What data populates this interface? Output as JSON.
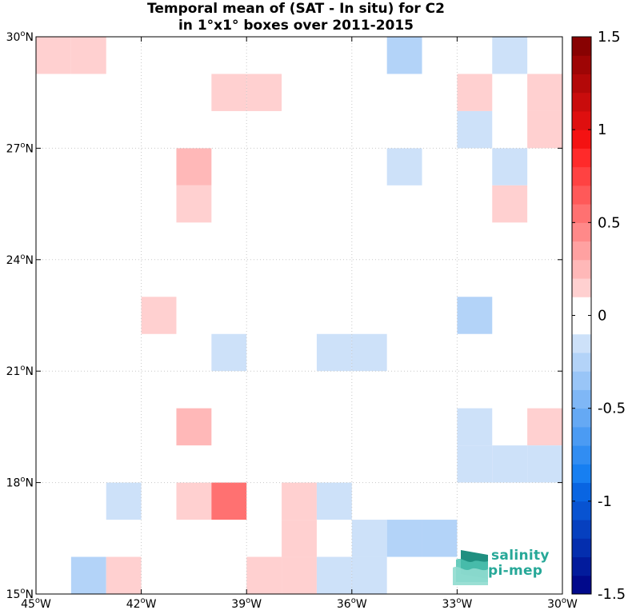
{
  "title_line1": "Temporal mean of (SAT - In situ) for C2",
  "title_line2": "in 1°x1° boxes over 2011-2015",
  "logo": {
    "line1": "salinity",
    "line2": "pi-mep"
  },
  "chart_data": {
    "type": "heatmap",
    "title": "Temporal mean of (SAT - In situ) for C2 in 1°x1° boxes over 2011-2015",
    "lon_range": [
      -45,
      -30
    ],
    "lat_range": [
      15,
      30
    ],
    "x_ticks": [
      -45,
      -42,
      -39,
      -36,
      -33,
      -30
    ],
    "x_tick_labels": [
      "45°W",
      "42°W",
      "39°W",
      "36°W",
      "33°W",
      "30°W"
    ],
    "y_ticks": [
      15,
      18,
      21,
      24,
      27,
      30
    ],
    "y_tick_labels": [
      "15°N",
      "18°N",
      "21°N",
      "24°N",
      "27°N",
      "30°N"
    ],
    "grid": true,
    "colorbar": {
      "range": [
        -1.5,
        1.5
      ],
      "levels": 30,
      "ticks": [
        1.5,
        1,
        0.5,
        0,
        -0.5,
        -1,
        -1.5
      ],
      "tick_labels": [
        "1.5",
        "1",
        "0.5",
        "0",
        "-0.5",
        "-1",
        "-1.5"
      ]
    },
    "cells": [
      {
        "lon": -45,
        "lat": 29,
        "value": 0.15
      },
      {
        "lon": -44,
        "lat": 29,
        "value": 0.15
      },
      {
        "lon": -35,
        "lat": 29,
        "value": -0.25
      },
      {
        "lon": -32,
        "lat": 29,
        "value": -0.15
      },
      {
        "lon": -40,
        "lat": 28,
        "value": 0.15
      },
      {
        "lon": -39,
        "lat": 28,
        "value": 0.15
      },
      {
        "lon": -33,
        "lat": 28,
        "value": 0.15
      },
      {
        "lon": -31,
        "lat": 28,
        "value": 0.15
      },
      {
        "lon": -33,
        "lat": 27,
        "value": -0.15
      },
      {
        "lon": -31,
        "lat": 27,
        "value": 0.15
      },
      {
        "lon": -41,
        "lat": 26,
        "value": 0.25
      },
      {
        "lon": -35,
        "lat": 26,
        "value": -0.15
      },
      {
        "lon": -32,
        "lat": 26,
        "value": -0.15
      },
      {
        "lon": -41,
        "lat": 25,
        "value": 0.15
      },
      {
        "lon": -32,
        "lat": 25,
        "value": 0.15
      },
      {
        "lon": -42,
        "lat": 22,
        "value": 0.15
      },
      {
        "lon": -33,
        "lat": 22,
        "value": -0.25
      },
      {
        "lon": -40,
        "lat": 21,
        "value": -0.15
      },
      {
        "lon": -37,
        "lat": 21,
        "value": -0.15
      },
      {
        "lon": -36,
        "lat": 21,
        "value": -0.15
      },
      {
        "lon": -41,
        "lat": 19,
        "value": 0.25
      },
      {
        "lon": -33,
        "lat": 19,
        "value": -0.15
      },
      {
        "lon": -31,
        "lat": 19,
        "value": 0.15
      },
      {
        "lon": -33,
        "lat": 18,
        "value": -0.15
      },
      {
        "lon": -32,
        "lat": 18,
        "value": -0.15
      },
      {
        "lon": -31,
        "lat": 18,
        "value": -0.15
      },
      {
        "lon": -43,
        "lat": 17,
        "value": -0.15
      },
      {
        "lon": -41,
        "lat": 17,
        "value": 0.15
      },
      {
        "lon": -40,
        "lat": 17,
        "value": 0.55
      },
      {
        "lon": -38,
        "lat": 17,
        "value": 0.15
      },
      {
        "lon": -37,
        "lat": 17,
        "value": -0.15
      },
      {
        "lon": -38,
        "lat": 16,
        "value": 0.15
      },
      {
        "lon": -36,
        "lat": 16,
        "value": -0.15
      },
      {
        "lon": -35,
        "lat": 16,
        "value": -0.25
      },
      {
        "lon": -34,
        "lat": 16,
        "value": -0.25
      },
      {
        "lon": -44,
        "lat": 15,
        "value": -0.25
      },
      {
        "lon": -43,
        "lat": 15,
        "value": 0.15
      },
      {
        "lon": -39,
        "lat": 15,
        "value": 0.15
      },
      {
        "lon": -38,
        "lat": 15,
        "value": 0.15
      },
      {
        "lon": -37,
        "lat": 15,
        "value": -0.15
      },
      {
        "lon": -36,
        "lat": 15,
        "value": -0.15
      }
    ]
  }
}
